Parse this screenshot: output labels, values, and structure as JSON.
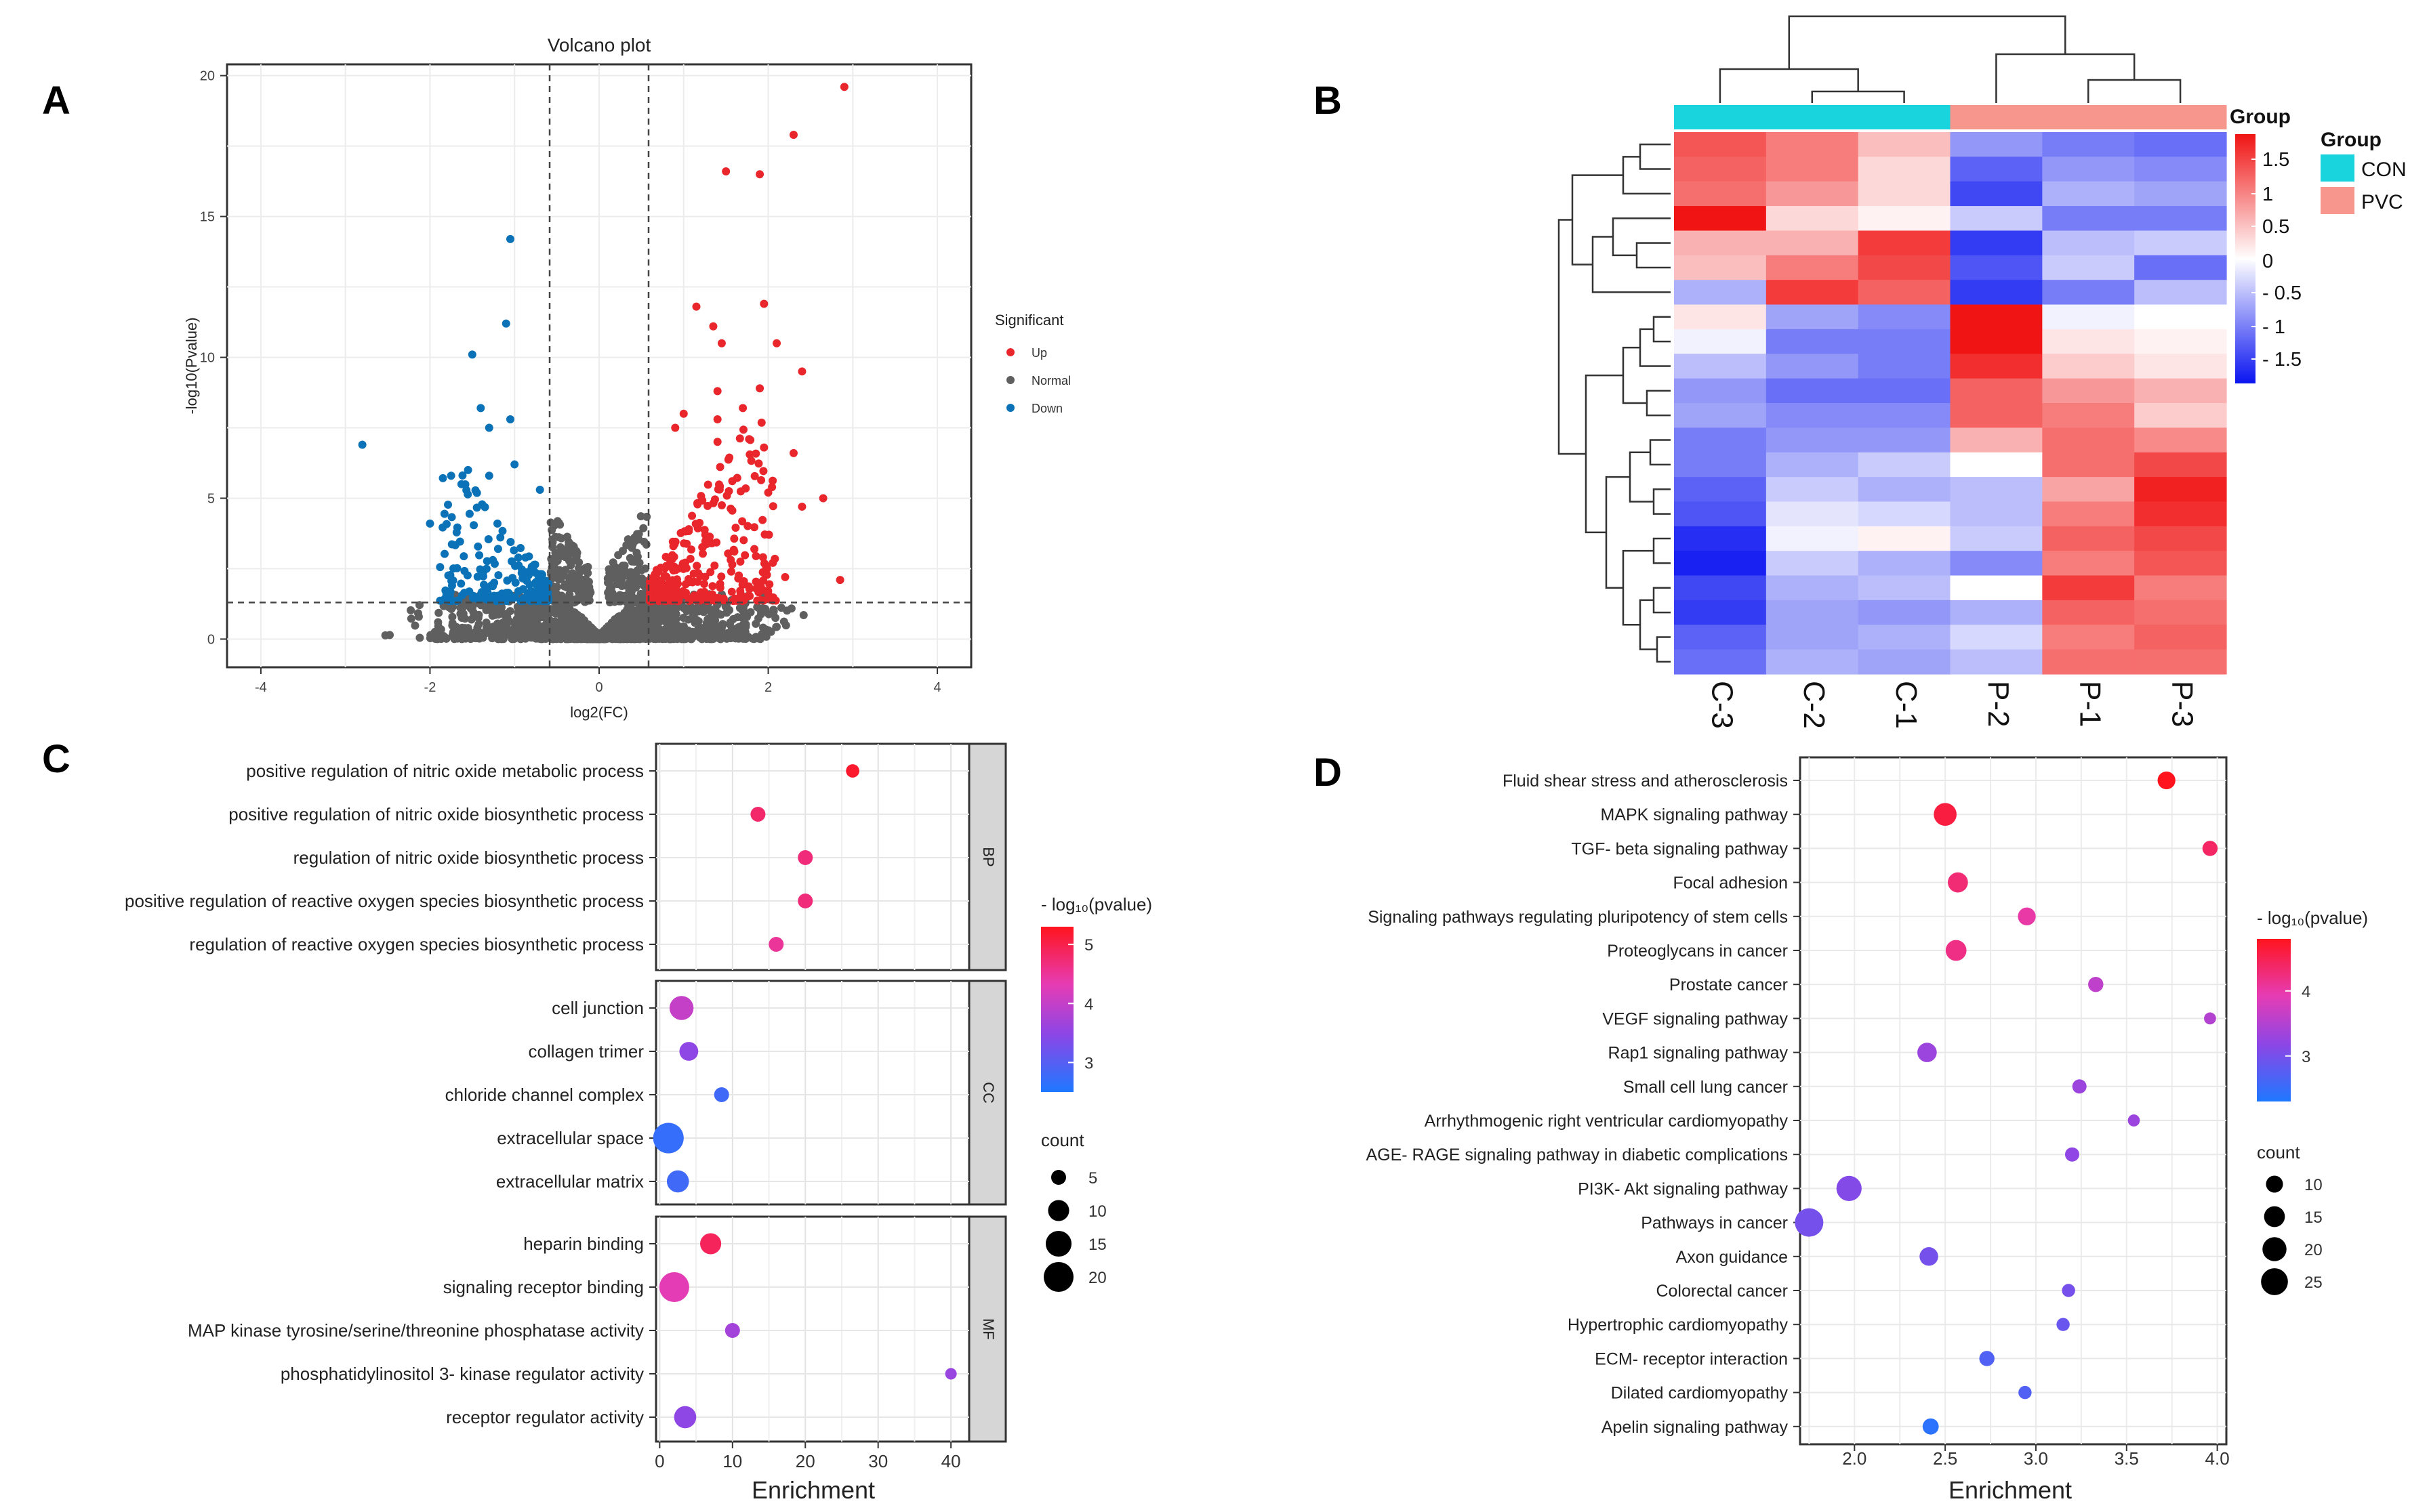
{
  "panels": {
    "A": "A",
    "B": "B",
    "C": "C",
    "D": "D"
  },
  "chart_data": [
    {
      "panel": "A",
      "type": "scatter",
      "title": "Volcano plot",
      "xlabel": "log2(FC)",
      "ylabel": "-log10(Pvalue)",
      "xlim": [
        -4.4,
        4.4
      ],
      "ylim": [
        -1,
        20.4
      ],
      "xticks": [
        -4,
        -2,
        0,
        2,
        4
      ],
      "yticks": [
        0,
        5,
        10,
        15,
        20
      ],
      "thresholds": {
        "x": [
          -0.585,
          0.585
        ],
        "y": 1.3
      },
      "legend": {
        "title": "Significant",
        "items": [
          {
            "label": "Up",
            "color": "#e8262b"
          },
          {
            "label": "Normal",
            "color": "#5f5f5f"
          },
          {
            "label": "Down",
            "color": "#0b72b8"
          }
        ]
      },
      "highlight_points": {
        "up": [
          [
            2.9,
            19.6
          ],
          [
            2.3,
            17.9
          ],
          [
            1.5,
            16.6
          ],
          [
            1.9,
            16.5
          ],
          [
            1.95,
            11.9
          ],
          [
            1.15,
            11.8
          ],
          [
            1.35,
            11.1
          ],
          [
            1.45,
            10.5
          ],
          [
            2.1,
            10.5
          ],
          [
            1.9,
            8.9
          ],
          [
            2.4,
            9.5
          ],
          [
            1.4,
            8.8
          ],
          [
            1.7,
            8.2
          ],
          [
            1.4,
            7.8
          ],
          [
            1.0,
            8.0
          ],
          [
            0.9,
            7.5
          ],
          [
            1.4,
            7.0
          ],
          [
            1.95,
            6.8
          ],
          [
            2.3,
            6.6
          ],
          [
            2.65,
            5.0
          ],
          [
            2.4,
            4.7
          ],
          [
            2.0,
            5.2
          ],
          [
            2.2,
            2.2
          ],
          [
            2.85,
            2.1
          ],
          [
            2.0,
            1.6
          ]
        ],
        "down": [
          [
            -2.8,
            6.9
          ],
          [
            -1.05,
            14.2
          ],
          [
            -1.1,
            11.2
          ],
          [
            -1.5,
            10.1
          ],
          [
            -1.4,
            8.2
          ],
          [
            -1.05,
            7.8
          ],
          [
            -1.3,
            7.5
          ],
          [
            -1.75,
            5.8
          ],
          [
            -1.55,
            6.0
          ],
          [
            -1.3,
            5.8
          ],
          [
            -1.0,
            6.2
          ],
          [
            -2.0,
            4.1
          ],
          [
            -0.7,
            5.3
          ]
        ]
      }
    },
    {
      "panel": "B",
      "type": "heatmap",
      "columns": [
        "C-3",
        "C-2",
        "C-1",
        "P-2",
        "P-1",
        "P-3"
      ],
      "groups": [
        "CON",
        "CON",
        "CON",
        "PVC",
        "PVC",
        "PVC"
      ],
      "group_legend": {
        "title": "Group",
        "items": [
          {
            "label": "CON",
            "color": "#19d4dc"
          },
          {
            "label": "PVC",
            "color": "#f7968c"
          }
        ]
      },
      "color_legend": {
        "title": "Group",
        "ticks": [
          "1.5",
          "1",
          "0.5",
          "0",
          "- 0.5",
          "- 1",
          "- 1.5"
        ],
        "range": [
          -1.8,
          1.8
        ]
      },
      "rows": [
        [
          1.3,
          1.0,
          0.5,
          -0.8,
          -1.0,
          -1.1
        ],
        [
          1.2,
          1.0,
          0.3,
          -1.2,
          -0.8,
          -0.9
        ],
        [
          1.1,
          0.8,
          0.3,
          -1.4,
          -0.6,
          -0.7
        ],
        [
          1.8,
          0.3,
          0.1,
          -0.4,
          -1.0,
          -1.0
        ],
        [
          0.6,
          0.6,
          1.5,
          -1.5,
          -0.5,
          -0.4
        ],
        [
          0.5,
          1.0,
          1.4,
          -1.3,
          -0.4,
          -1.1
        ],
        [
          -0.6,
          1.5,
          1.2,
          -1.5,
          -1.0,
          -0.5
        ],
        [
          0.2,
          -0.7,
          -0.9,
          2.0,
          -0.1,
          0.0
        ],
        [
          -0.1,
          -1.0,
          -1.0,
          1.8,
          0.2,
          0.1
        ],
        [
          -0.5,
          -0.8,
          -1.0,
          1.6,
          0.4,
          0.2
        ],
        [
          -0.8,
          -1.1,
          -1.1,
          1.2,
          0.8,
          0.6
        ],
        [
          -0.7,
          -0.9,
          -0.9,
          1.2,
          1.0,
          0.4
        ],
        [
          -1.0,
          -0.8,
          -0.8,
          0.6,
          1.1,
          0.9
        ],
        [
          -1.0,
          -0.6,
          -0.4,
          0.0,
          1.1,
          1.4
        ],
        [
          -1.2,
          -0.4,
          -0.6,
          -0.5,
          0.7,
          1.7
        ],
        [
          -1.3,
          -0.2,
          -0.3,
          -0.5,
          1.0,
          1.6
        ],
        [
          -1.6,
          -0.1,
          0.1,
          -0.4,
          1.2,
          1.4
        ],
        [
          -1.7,
          -0.4,
          -0.6,
          -0.9,
          1.0,
          1.3
        ],
        [
          -1.4,
          -0.6,
          -0.5,
          0.0,
          1.5,
          1.0
        ],
        [
          -1.5,
          -0.7,
          -0.8,
          -0.6,
          1.2,
          1.1
        ],
        [
          -1.2,
          -0.7,
          -0.6,
          -0.3,
          1.0,
          1.2
        ],
        [
          -1.1,
          -0.6,
          -0.7,
          -0.5,
          1.1,
          1.1
        ]
      ]
    },
    {
      "panel": "C",
      "type": "scatter",
      "subtype": "dot-plot",
      "xlabel": "Enrichment",
      "xlim": [
        -0.5,
        42.5
      ],
      "xticks": [
        0,
        10,
        20,
        30,
        40
      ],
      "color_legend": {
        "title": "- log₁₀(pvalue)",
        "ticks": [
          3,
          4,
          5
        ],
        "range": [
          2.5,
          5.3
        ]
      },
      "size_legend": {
        "title": "count",
        "values": [
          5,
          10,
          15,
          20
        ]
      },
      "facets": [
        {
          "label": "BP",
          "terms": [
            {
              "term": "positive regulation of nitric oxide metabolic process",
              "enrichment": 26.5,
              "logp": 5.2,
              "count": 4
            },
            {
              "term": "positive regulation of nitric oxide biosynthetic process",
              "enrichment": 13.5,
              "logp": 4.8,
              "count": 5
            },
            {
              "term": "regulation of nitric oxide biosynthetic process",
              "enrichment": 20.0,
              "logp": 4.7,
              "count": 5
            },
            {
              "term": "positive regulation of reactive oxygen species biosynthetic process",
              "enrichment": 20.0,
              "logp": 4.7,
              "count": 5
            },
            {
              "term": "regulation of reactive oxygen species biosynthetic process",
              "enrichment": 16.0,
              "logp": 4.5,
              "count": 5
            }
          ]
        },
        {
          "label": "CC",
          "terms": [
            {
              "term": "cell junction",
              "enrichment": 3.0,
              "logp": 4.0,
              "count": 13
            },
            {
              "term": "collagen trimer",
              "enrichment": 4.0,
              "logp": 3.5,
              "count": 8
            },
            {
              "term": "chloride channel complex",
              "enrichment": 8.5,
              "logp": 2.8,
              "count": 5
            },
            {
              "term": "extracellular space",
              "enrichment": 1.2,
              "logp": 2.7,
              "count": 21
            },
            {
              "term": "extracellular matrix",
              "enrichment": 2.5,
              "logp": 2.8,
              "count": 11
            }
          ]
        },
        {
          "label": "MF",
          "terms": [
            {
              "term": "heparin binding",
              "enrichment": 7.0,
              "logp": 4.9,
              "count": 10
            },
            {
              "term": "signaling receptor binding",
              "enrichment": 2.0,
              "logp": 4.3,
              "count": 20
            },
            {
              "term": "MAP kinase tyrosine/serine/threonine phosphatase activity",
              "enrichment": 10.0,
              "logp": 3.7,
              "count": 5
            },
            {
              "term": "phosphatidylinositol 3- kinase regulator activity",
              "enrichment": 40.0,
              "logp": 3.6,
              "count": 3
            },
            {
              "term": "receptor regulator activity",
              "enrichment": 3.5,
              "logp": 3.5,
              "count": 11
            }
          ]
        }
      ]
    },
    {
      "panel": "D",
      "type": "scatter",
      "subtype": "dot-plot",
      "xlabel": "Enrichment",
      "xlim": [
        1.7,
        4.05
      ],
      "xticks": [
        2.0,
        2.5,
        3.0,
        3.5,
        4.0
      ],
      "color_legend": {
        "title": "- log₁₀(pvalue)",
        "ticks": [
          3,
          4
        ],
        "range": [
          2.3,
          4.8
        ]
      },
      "size_legend": {
        "title": "count",
        "values": [
          10,
          15,
          20,
          25
        ]
      },
      "terms": [
        {
          "term": "Fluid shear stress and atherosclerosis",
          "enrichment": 3.72,
          "logp": 4.8,
          "count": 11
        },
        {
          "term": "MAPK signaling pathway",
          "enrichment": 2.5,
          "logp": 4.6,
          "count": 18
        },
        {
          "term": "TGF- beta signaling pathway",
          "enrichment": 3.96,
          "logp": 4.4,
          "count": 8
        },
        {
          "term": "Focal adhesion",
          "enrichment": 2.57,
          "logp": 4.3,
          "count": 14
        },
        {
          "term": "Signaling pathways regulating pluripotency of stem cells",
          "enrichment": 2.95,
          "logp": 4.0,
          "count": 11
        },
        {
          "term": "Proteoglycans in cancer",
          "enrichment": 2.56,
          "logp": 4.2,
          "count": 15
        },
        {
          "term": "Prostate cancer",
          "enrichment": 3.33,
          "logp": 3.6,
          "count": 8
        },
        {
          "term": "VEGF signaling pathway",
          "enrichment": 3.96,
          "logp": 3.5,
          "count": 5
        },
        {
          "term": "Rap1 signaling pathway",
          "enrichment": 2.4,
          "logp": 3.3,
          "count": 13
        },
        {
          "term": "Small cell lung cancer",
          "enrichment": 3.24,
          "logp": 3.3,
          "count": 7
        },
        {
          "term": "Arrhythmogenic right ventricular cardiomyopathy",
          "enrichment": 3.54,
          "logp": 3.3,
          "count": 5
        },
        {
          "term": "AGE- RAGE signaling pathway in diabetic complications",
          "enrichment": 3.2,
          "logp": 3.2,
          "count": 7
        },
        {
          "term": "PI3K- Akt signaling pathway",
          "enrichment": 1.97,
          "logp": 3.1,
          "count": 22
        },
        {
          "term": "Pathways in cancer",
          "enrichment": 1.75,
          "logp": 3.0,
          "count": 28
        },
        {
          "term": "Axon guidance",
          "enrichment": 2.41,
          "logp": 3.0,
          "count": 12
        },
        {
          "term": "Colorectal cancer",
          "enrichment": 3.18,
          "logp": 3.0,
          "count": 6
        },
        {
          "term": "Hypertrophic cardiomyopathy",
          "enrichment": 3.15,
          "logp": 2.9,
          "count": 6
        },
        {
          "term": "ECM- receptor interaction",
          "enrichment": 2.73,
          "logp": 2.7,
          "count": 8
        },
        {
          "term": "Dilated cardiomyopathy",
          "enrichment": 2.94,
          "logp": 2.7,
          "count": 6
        },
        {
          "term": "Apelin signaling pathway",
          "enrichment": 2.42,
          "logp": 2.4,
          "count": 9
        }
      ]
    }
  ]
}
